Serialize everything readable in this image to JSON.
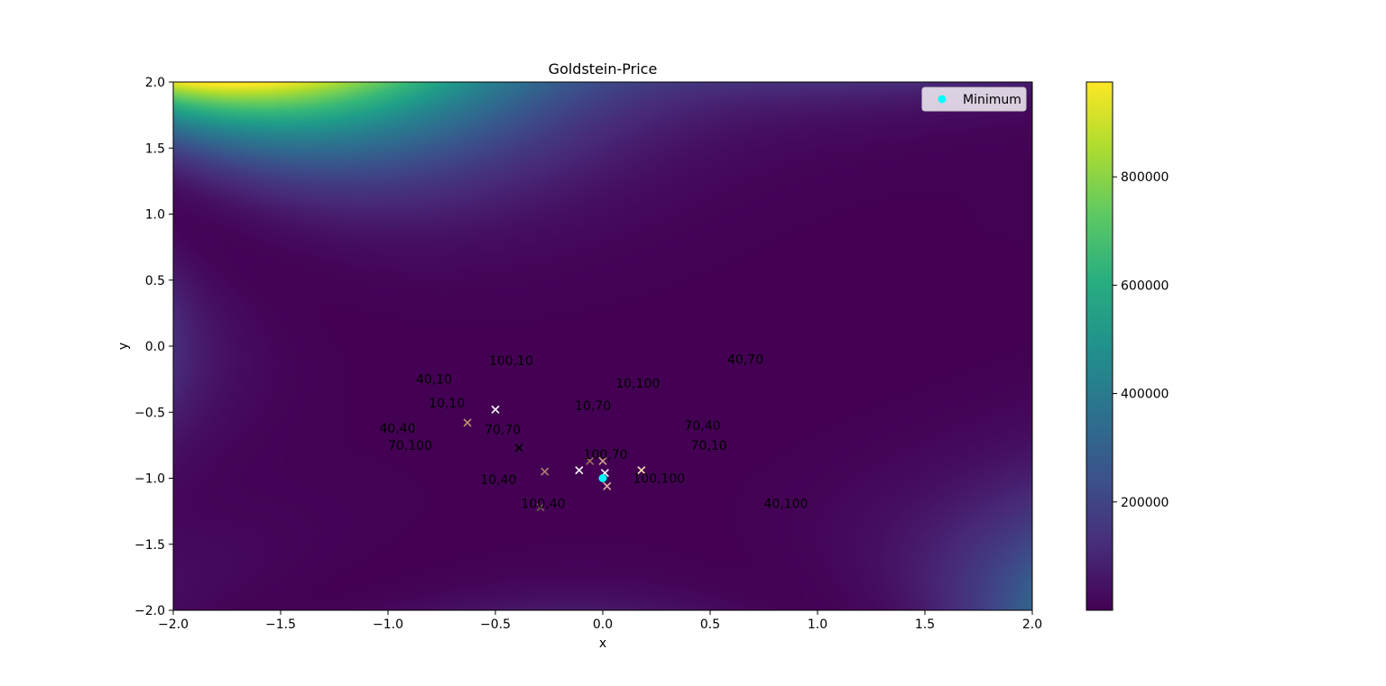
{
  "chart_data": {
    "type": "heatmap",
    "title": "Goldstein-Price",
    "xlabel": "x",
    "ylabel": "y",
    "xlim": [
      -2,
      2
    ],
    "ylim": [
      -2,
      2
    ],
    "xticks": [
      -2.0,
      -1.5,
      -1.0,
      -0.5,
      0.0,
      0.5,
      1.0,
      1.5,
      2.0
    ],
    "yticks": [
      -2.0,
      -1.5,
      -1.0,
      -0.5,
      0.0,
      0.5,
      1.0,
      1.5,
      2.0
    ],
    "xtick_labels": [
      "−2.0",
      "−1.5",
      "−1.0",
      "−0.5",
      "0.0",
      "0.5",
      "1.0",
      "1.5",
      "2.0"
    ],
    "ytick_labels": [
      "−2.0",
      "−1.5",
      "−1.0",
      "−0.5",
      "0.0",
      "0.5",
      "1.0",
      "1.5",
      "2.0"
    ],
    "colormap": "viridis",
    "colorbar": {
      "range": [
        3,
        975000
      ],
      "ticks": [
        200000,
        400000,
        600000,
        800000
      ],
      "tick_labels": [
        "200000",
        "400000",
        "600000",
        "800000"
      ]
    },
    "minimum": {
      "name": "Minimum",
      "x": 0.0,
      "y": -1.0,
      "color": "#00ffff"
    },
    "legend": {
      "placement": "top-right",
      "entries": [
        "Minimum"
      ]
    },
    "markers": [
      {
        "x": -0.5,
        "y": -0.48,
        "color": "#ffffff"
      },
      {
        "x": -0.63,
        "y": -0.58,
        "color": "#c09070"
      },
      {
        "x": -0.39,
        "y": -0.77,
        "color": "#000000"
      },
      {
        "x": -0.27,
        "y": -0.95,
        "color": "#b08070"
      },
      {
        "x": -0.29,
        "y": -1.22,
        "color": "#806050"
      },
      {
        "x": -0.11,
        "y": -0.94,
        "color": "#ffffff"
      },
      {
        "x": -0.06,
        "y": -0.87,
        "color": "#a07060"
      },
      {
        "x": 0.0,
        "y": -0.87,
        "color": "#d0a090"
      },
      {
        "x": 0.01,
        "y": -0.96,
        "color": "#ffffff"
      },
      {
        "x": 0.02,
        "y": -1.06,
        "color": "#e0b0a0"
      },
      {
        "x": 0.18,
        "y": -0.94,
        "color": "#ffe0b0"
      }
    ],
    "annotations": [
      {
        "text": "100,10",
        "x": -0.53,
        "y": -0.11
      },
      {
        "text": "40,70",
        "x": 0.58,
        "y": -0.1
      },
      {
        "text": "40,10",
        "x": -0.87,
        "y": -0.25
      },
      {
        "text": "10,100",
        "x": 0.06,
        "y": -0.28
      },
      {
        "text": "10,10",
        "x": -0.81,
        "y": -0.43
      },
      {
        "text": "10,70",
        "x": -0.13,
        "y": -0.45
      },
      {
        "text": "40,40",
        "x": -1.04,
        "y": -0.62
      },
      {
        "text": "70,70",
        "x": -0.55,
        "y": -0.63
      },
      {
        "text": "70,40",
        "x": 0.38,
        "y": -0.6
      },
      {
        "text": "70,100",
        "x": -1.0,
        "y": -0.75
      },
      {
        "text": "70,10",
        "x": 0.41,
        "y": -0.75
      },
      {
        "text": "100,70",
        "x": -0.09,
        "y": -0.82
      },
      {
        "text": "10,40",
        "x": -0.57,
        "y": -1.01
      },
      {
        "text": "100,100",
        "x": 0.14,
        "y": -1.0
      },
      {
        "text": "100,40",
        "x": -0.38,
        "y": -1.19
      },
      {
        "text": "40,100",
        "x": 0.75,
        "y": -1.19
      }
    ]
  }
}
